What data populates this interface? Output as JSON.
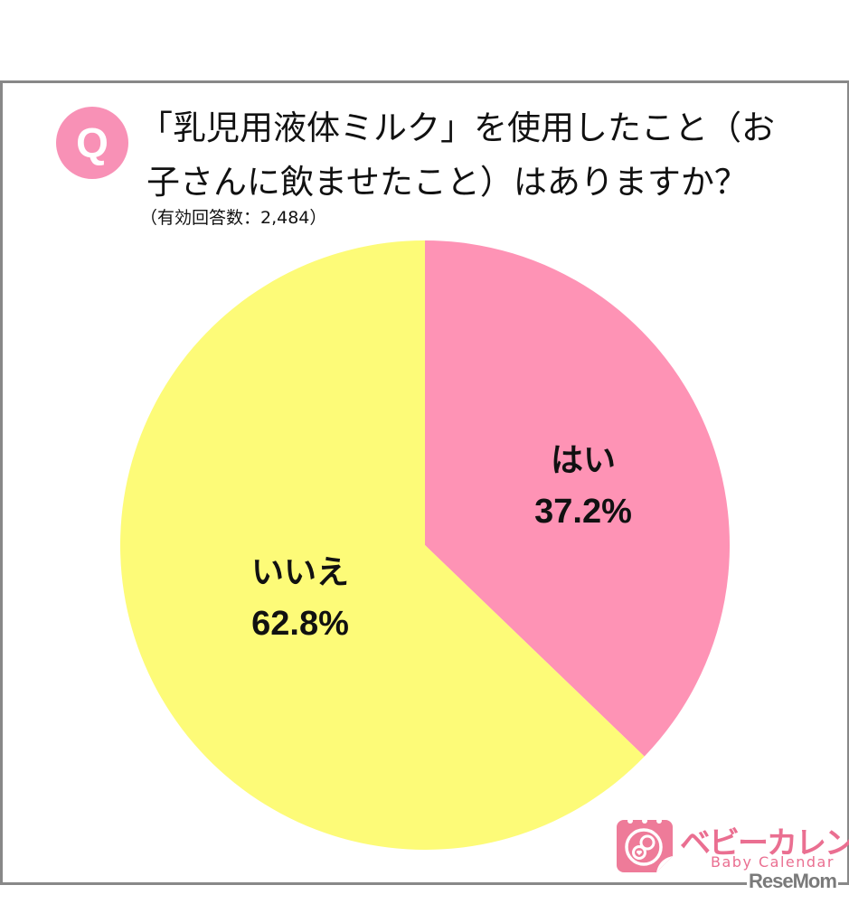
{
  "question": {
    "badge": "Q",
    "title_line1": "「乳児用液体ミルク」を使用したこと（お",
    "title_line2": "子さんに飲ませたこと）はありますか？",
    "respondents": "（有効回答数：2,484）"
  },
  "chart_data": {
    "type": "pie",
    "title": "「乳児用液体ミルク」を使用したこと（お子さんに飲ませたこと）はありますか？",
    "subtitle": "（有効回答数：2,484）",
    "categories": [
      "はい",
      "いいえ"
    ],
    "values": [
      37.2,
      62.8
    ],
    "unit": "%",
    "colors": [
      "#fe93b5",
      "#fdfb78"
    ],
    "start_angle": "12 o'clock, clockwise",
    "labels": [
      {
        "category": "はい",
        "percent": "37.2%"
      },
      {
        "category": "いいえ",
        "percent": "62.8%"
      }
    ],
    "legend": "none (labels inside slices)"
  },
  "branding": {
    "logo_jp": "ベビーカレンダー",
    "logo_en": "Baby Calendar",
    "watermark": "ReseMom",
    "logo_color": "#ea6f91"
  }
}
